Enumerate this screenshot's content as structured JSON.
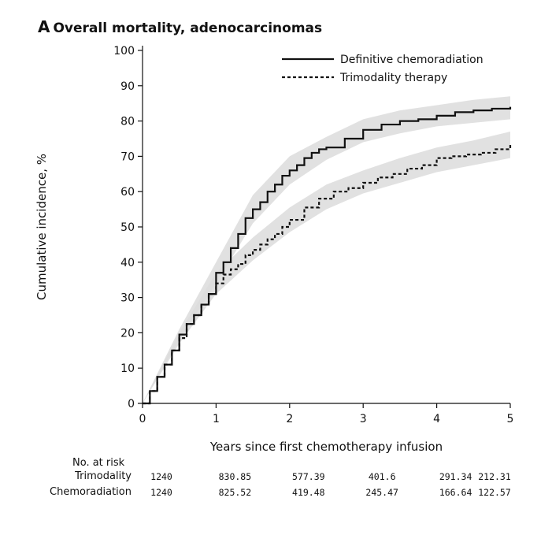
{
  "panel": {
    "letter": "A",
    "title": "Overall mortality, adenocarcinomas"
  },
  "chart_data": {
    "type": "line",
    "title": "Overall mortality, adenocarcinomas",
    "xlabel": "Years since first chemotherapy infusion",
    "ylabel": "Cumulative incidence, %",
    "xlim": [
      0,
      5
    ],
    "ylim": [
      0,
      100
    ],
    "xticks": [
      0,
      1,
      2,
      3,
      4,
      5
    ],
    "yticks": [
      0,
      10,
      20,
      30,
      40,
      50,
      60,
      70,
      80,
      90,
      100
    ],
    "grid": false,
    "legend": "top-right",
    "series": [
      {
        "name": "Definitive chemoradiation",
        "style": "solid",
        "color": "#111111",
        "x": [
          0,
          0.1,
          0.2,
          0.3,
          0.4,
          0.5,
          0.6,
          0.7,
          0.8,
          0.9,
          1.0,
          1.1,
          1.2,
          1.3,
          1.4,
          1.5,
          1.6,
          1.7,
          1.8,
          1.9,
          2.0,
          2.1,
          2.2,
          2.3,
          2.4,
          2.5,
          2.75,
          3.0,
          3.25,
          3.5,
          3.75,
          4.0,
          4.25,
          4.5,
          4.75,
          5.0
        ],
        "y": [
          0,
          3.5,
          7.5,
          11,
          15,
          19.5,
          22.5,
          25,
          28,
          31,
          37,
          40,
          44,
          48,
          52.5,
          55,
          57,
          60,
          62,
          64.5,
          66,
          67.5,
          69.5,
          71,
          72,
          72.5,
          75,
          77.5,
          79,
          80,
          80.5,
          81.5,
          82.5,
          83,
          83.5,
          84
        ]
      },
      {
        "name": "Trimodality therapy",
        "style": "dashed",
        "color": "#111111",
        "x": [
          0,
          0.1,
          0.2,
          0.3,
          0.4,
          0.5,
          0.6,
          0.7,
          0.8,
          0.9,
          1.0,
          1.1,
          1.2,
          1.3,
          1.4,
          1.5,
          1.6,
          1.7,
          1.8,
          1.9,
          2.0,
          2.2,
          2.4,
          2.6,
          2.8,
          3.0,
          3.2,
          3.4,
          3.6,
          3.8,
          4.0,
          4.2,
          4.4,
          4.6,
          4.8,
          5.0
        ],
        "y": [
          0,
          3.5,
          7.5,
          11,
          15,
          18.5,
          22.5,
          25,
          28,
          31,
          34,
          36.5,
          38,
          39.5,
          42,
          43.5,
          45,
          46.5,
          48,
          50,
          52,
          55.5,
          58,
          60,
          61,
          62.5,
          64,
          65,
          66.5,
          67.5,
          69.5,
          70,
          70.5,
          71,
          72,
          73.5
        ]
      }
    ],
    "ci_bands": [
      {
        "series": "Definitive chemoradiation",
        "color": "#dcdcdc",
        "x": [
          0,
          0.5,
          1.0,
          1.5,
          2.0,
          2.5,
          3.0,
          3.5,
          4.0,
          4.5,
          5.0
        ],
        "lower": [
          0,
          18,
          34,
          51,
          62,
          69,
          74,
          76.5,
          78.5,
          79.5,
          80.5
        ],
        "upper": [
          0,
          21,
          40,
          59,
          70,
          75.5,
          80.5,
          83,
          84.5,
          86,
          87
        ]
      },
      {
        "series": "Trimodality therapy",
        "color": "#dcdcdc",
        "x": [
          0,
          0.5,
          1.0,
          1.5,
          2.0,
          2.5,
          3.0,
          3.5,
          4.0,
          4.5,
          5.0
        ],
        "lower": [
          0,
          17,
          31,
          40.5,
          48.5,
          55,
          59.5,
          62.5,
          65.5,
          67.5,
          69.5
        ],
        "upper": [
          0,
          20,
          37,
          47,
          55.5,
          62,
          66,
          69.5,
          72.5,
          74.5,
          77
        ]
      }
    ],
    "risk_table": {
      "header": "No. at risk",
      "times": [
        0,
        1,
        2,
        3,
        4,
        5
      ],
      "rows": [
        {
          "label": "Trimodality",
          "values": [
            "1240",
            "830.85",
            "577.39",
            "401.6",
            "291.34",
            "212.31"
          ]
        },
        {
          "label": "Chemoradiation",
          "values": [
            "1240",
            "825.52",
            "419.48",
            "245.47",
            "166.64",
            "122.57"
          ]
        }
      ]
    }
  }
}
